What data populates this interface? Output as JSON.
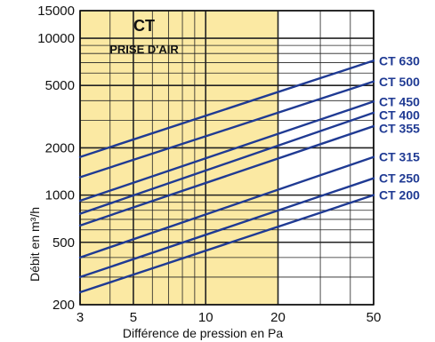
{
  "chart_data": {
    "type": "line",
    "title": "CT",
    "subtitle": "PRISE D'AIR",
    "xlabel": "Différence de pression en Pa",
    "ylabel": "Débit en m³/h",
    "x_scale": "log",
    "y_scale": "log",
    "xlim": [
      3,
      50
    ],
    "ylim": [
      200,
      15000
    ],
    "x_ticks": [
      {
        "value": 3,
        "label": "3"
      },
      {
        "value": 5,
        "label": "5"
      },
      {
        "value": 10,
        "label": "10"
      },
      {
        "value": 20,
        "label": "20"
      },
      {
        "value": 50,
        "label": "50"
      }
    ],
    "y_ticks": [
      {
        "value": 200,
        "label": "200"
      },
      {
        "value": 500,
        "label": "500"
      },
      {
        "value": 1000,
        "label": "1000"
      },
      {
        "value": 2000,
        "label": "2000"
      },
      {
        "value": 5000,
        "label": "5000"
      },
      {
        "value": 10000,
        "label": "10000"
      },
      {
        "value": 15000,
        "label": "15000"
      }
    ],
    "highlight_region": {
      "x_from": 3,
      "x_to": 20,
      "color": "#fbe9a3"
    },
    "grid": true,
    "line_color": "#1f3a93",
    "series": [
      {
        "name": "CT 630",
        "x": [
          3,
          50
        ],
        "y": [
          1750,
          7200
        ]
      },
      {
        "name": "CT 500",
        "x": [
          3,
          50
        ],
        "y": [
          1300,
          5300
        ]
      },
      {
        "name": "CT 450",
        "x": [
          3,
          50
        ],
        "y": [
          920,
          3950
        ]
      },
      {
        "name": "CT 400",
        "x": [
          3,
          50
        ],
        "y": [
          760,
          3350
        ]
      },
      {
        "name": "CT 355",
        "x": [
          3,
          50
        ],
        "y": [
          640,
          2750
        ]
      },
      {
        "name": "CT 315",
        "x": [
          3,
          50
        ],
        "y": [
          400,
          1750
        ]
      },
      {
        "name": "CT 250",
        "x": [
          3,
          50
        ],
        "y": [
          300,
          1280
        ]
      },
      {
        "name": "CT 200",
        "x": [
          3,
          50
        ],
        "y": [
          240,
          1000
        ]
      }
    ]
  }
}
